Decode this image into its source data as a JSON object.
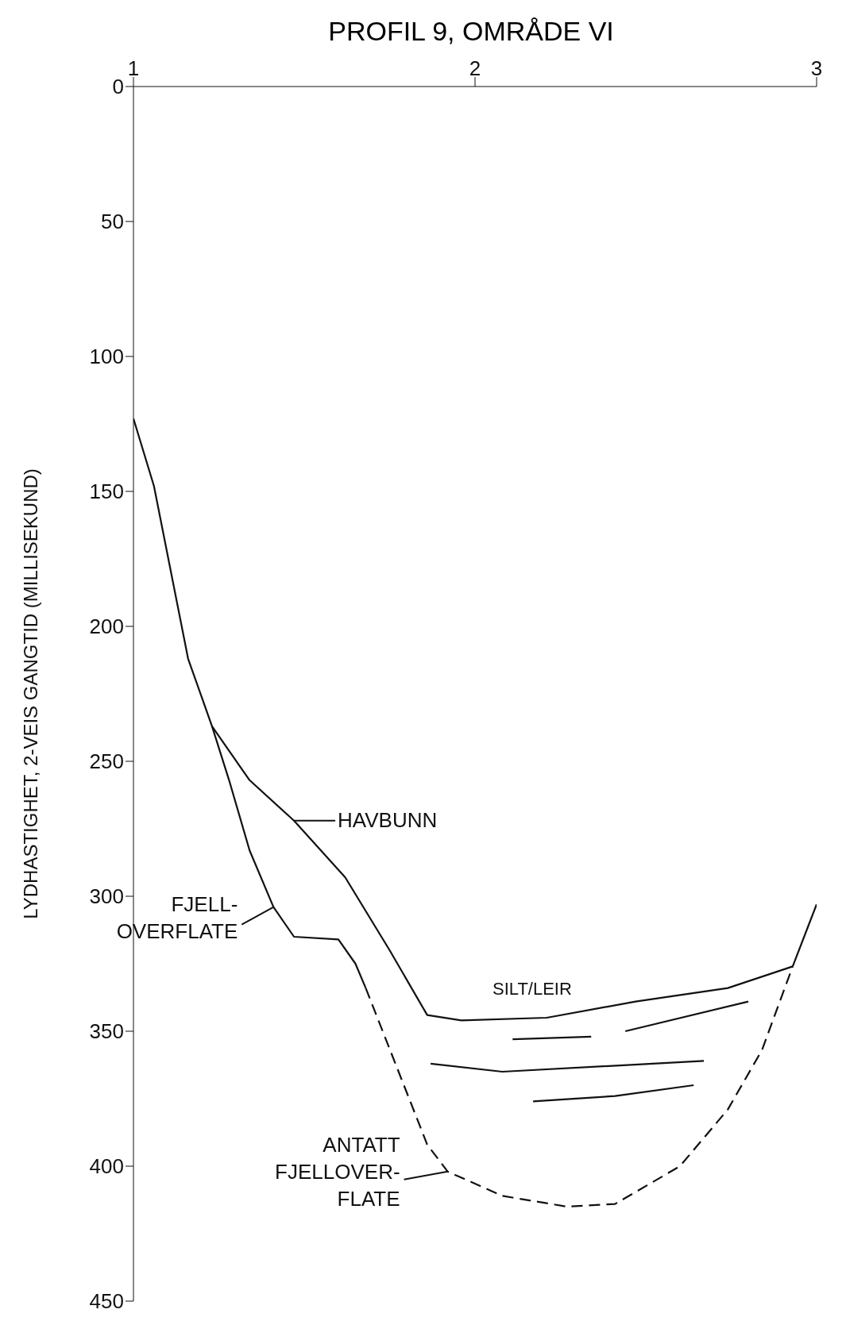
{
  "chart_data": {
    "type": "line",
    "title": "PROFIL 9, OMRÅDE VI",
    "ylabel": "LYDHASTIGHET, 2-VEIS GANGTID (MILLISEKUND)",
    "xlim": [
      1,
      3
    ],
    "xticks": [
      1,
      2,
      3
    ],
    "ylim": [
      450,
      0
    ],
    "yticks": [
      0,
      50,
      100,
      150,
      200,
      250,
      300,
      350,
      400,
      450
    ],
    "grid": false,
    "marker": "none",
    "series": [
      {
        "color": "#111111",
        "line_style": "solid",
        "x": [
          1.23,
          1.34,
          1.47,
          1.62,
          1.75,
          1.86,
          1.96,
          2.21,
          2.47,
          2.74,
          2.93
        ],
        "values": [
          237,
          257,
          272,
          293,
          320,
          344,
          346,
          345,
          339,
          334,
          326
        ]
      },
      {
        "color": "#111111",
        "line_style": "solid",
        "x": [
          1.0,
          1.06,
          1.11,
          1.16,
          1.23,
          1.28,
          1.34,
          1.41,
          1.47,
          1.6,
          1.65,
          1.68
        ],
        "values": [
          123,
          148,
          180,
          212,
          237,
          257,
          283,
          304,
          315,
          316,
          325,
          334
        ]
      },
      {
        "color": "#111111",
        "line_style": "dashed",
        "x": [
          1.68,
          1.77,
          1.86,
          1.92,
          2.08,
          2.27,
          2.41,
          2.6,
          2.74,
          2.84,
          2.93
        ],
        "values": [
          334,
          363,
          392,
          402,
          411,
          415,
          414,
          400,
          379,
          357,
          326
        ]
      },
      {
        "color": "#111111",
        "line_style": "solid",
        "x": [
          2.93,
          3.0
        ],
        "values": [
          326,
          303
        ]
      },
      {
        "color": "#111111",
        "line_style": "solid",
        "x": [
          1.87,
          2.08,
          2.67
        ],
        "values": [
          362,
          365,
          361
        ]
      },
      {
        "color": "#111111",
        "line_style": "solid",
        "x": [
          2.11,
          2.34
        ],
        "values": [
          353,
          352
        ]
      },
      {
        "color": "#111111",
        "line_style": "solid",
        "x": [
          2.44,
          2.8
        ],
        "values": [
          350,
          339
        ]
      },
      {
        "color": "#111111",
        "line_style": "solid",
        "x": [
          2.17,
          2.41,
          2.64
        ],
        "values": [
          376,
          374,
          370
        ]
      }
    ],
    "annotations": [
      {
        "text": "HAVBUNN",
        "x": 1.47,
        "y": 272
      },
      {
        "text": "FJELL-\nOVERFLATE",
        "x": 1.41,
        "y": 304
      },
      "SILT/LEIR",
      {
        "text": "ANTATT\nFJELLOVER-\nFLATE",
        "x": 1.92,
        "y": 402
      }
    ]
  }
}
